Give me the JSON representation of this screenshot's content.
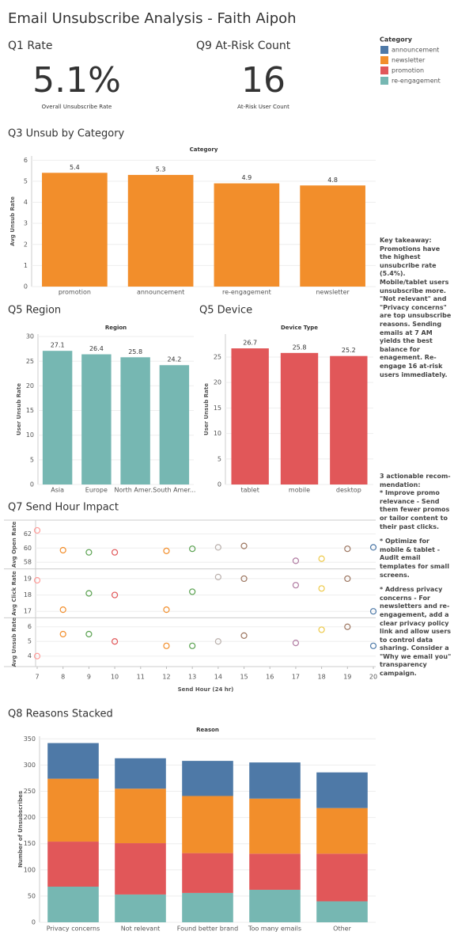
{
  "title": "Email Unsubscribe Analysis - Faith Aipoh",
  "kpis": [
    {
      "heading": "Q1 Rate",
      "value": "5.1%",
      "label": "Overall Unsubscribe Rate"
    },
    {
      "heading": "Q9 At-Risk Count",
      "value": "16",
      "label": "At-Risk User Count"
    }
  ],
  "legend": {
    "title": "Category",
    "items": [
      {
        "name": "announcement",
        "color": "#4e79a7"
      },
      {
        "name": "newsletter",
        "color": "#f28e2b"
      },
      {
        "name": "promotion",
        "color": "#e15759"
      },
      {
        "name": "re-engagement",
        "color": "#76b7b2"
      }
    ]
  },
  "notes": [
    {
      "heading": "Key takeaway:",
      "text": "Promotions have the highest unsubcribe rate (5.4%). Mobile/tablet users unsubscribe more. \"Not relevant\" and \"Privacy concerns\" are top unsubscribe reasons. Sending emails at 7 AM yields the best balance for enagement. Re-engage 16 at-risk users immediately."
    },
    {
      "heading": "3 actionable recom-mendation:",
      "items": [
        "* Improve promo relevance - Send them fewer promos or tailor content to their past clicks.",
        "* Optimize for mobile & tablet - Audit email templates for small screens.",
        "* Address privacy concerns - For newsletters and re-engagement, add a clear privacy policy link and allow users to control data sharing. Consider a \"Why we email you\" transparency campaign."
      ]
    }
  ],
  "chart_data": [
    {
      "type": "bar",
      "title": "Q3 Unsub by Category",
      "header": "Category",
      "ylabel": "Avg Unsub Rate",
      "categories": [
        "promotion",
        "announcement",
        "re-engagement",
        "newsletter"
      ],
      "values": [
        5.4,
        5.3,
        4.9,
        4.8
      ],
      "color": "#f28e2b",
      "ylim": [
        0,
        6.2
      ],
      "yticks": [
        0,
        1,
        2,
        3,
        4,
        5,
        6
      ],
      "grid": true
    },
    {
      "type": "bar",
      "title": "Q5 Region",
      "header": "Region",
      "ylabel": "User Unsub Rate",
      "categories": [
        "Asia",
        "Europe",
        "North Amer...",
        "South Amer..."
      ],
      "values": [
        27.1,
        26.4,
        25.8,
        24.2
      ],
      "color": "#76b7b2",
      "ylim": [
        0,
        30.5
      ],
      "yticks": [
        0,
        5,
        10,
        15,
        20,
        25,
        30
      ],
      "grid": true
    },
    {
      "type": "bar",
      "title": "Q5 Device",
      "header": "Device Type",
      "ylabel": "User Unsub Rate",
      "categories": [
        "tablet",
        "mobile",
        "desktop"
      ],
      "values": [
        26.7,
        25.8,
        25.2
      ],
      "color": "#e15759",
      "ylim": [
        0,
        29.5
      ],
      "yticks": [
        0,
        5,
        10,
        15,
        20,
        25
      ],
      "grid": true
    },
    {
      "type": "scatter",
      "title": "Q7 Send Hour Impact",
      "xlabel": "Send Hour (24 hr)",
      "x": [
        7,
        8,
        9,
        10,
        12,
        13,
        14,
        15,
        17,
        18,
        19,
        20
      ],
      "point_colors": [
        "#ff9d9a",
        "#f28e2b",
        "#59a14f",
        "#e15759",
        "#f28e2b",
        "#59a14f",
        "#bab0ac",
        "#9c755f",
        "#b07aa1",
        "#edc948",
        "#9c755f",
        "#4e79a7"
      ],
      "xlim": [
        7,
        20
      ],
      "xticks": [
        7,
        8,
        9,
        10,
        11,
        12,
        13,
        14,
        15,
        16,
        17,
        18,
        19,
        20
      ],
      "grid": true,
      "series": [
        {
          "name": "Avg Open Rate",
          "values": [
            62.5,
            59.7,
            59.4,
            59.4,
            59.6,
            59.9,
            60.1,
            60.3,
            58.2,
            58.5,
            59.9,
            60.1
          ],
          "ylim": [
            57.5,
            63.5
          ],
          "yticks": [
            58,
            60,
            62
          ]
        },
        {
          "name": "Avg Click Rate",
          "values": [
            18.9,
            17.1,
            18.1,
            18.0,
            17.1,
            18.2,
            19.1,
            19.0,
            18.6,
            18.4,
            19.0,
            17.0
          ],
          "ylim": [
            16.8,
            19.4
          ],
          "yticks": [
            17,
            18,
            19
          ]
        },
        {
          "name": "Avg Unsub Rate",
          "values": [
            4.0,
            5.5,
            5.5,
            5.0,
            4.7,
            4.7,
            5.0,
            5.4,
            4.9,
            5.8,
            6.0,
            4.7
          ],
          "ylim": [
            3.5,
            6.4
          ],
          "yticks": [
            4,
            5,
            6
          ]
        }
      ]
    },
    {
      "type": "stacked_bar",
      "title": "Q8 Reasons Stacked",
      "header": "Reason",
      "ylabel": "Number of Unsubscribes",
      "categories": [
        "Privacy concerns",
        "Not relevant",
        "Found better brand",
        "Too many emails",
        "Other"
      ],
      "series": [
        {
          "name": "re-engagement",
          "color": "#76b7b2",
          "values": [
            68,
            53,
            56,
            62,
            40
          ]
        },
        {
          "name": "promotion",
          "color": "#e15759",
          "values": [
            86,
            98,
            76,
            69,
            91
          ]
        },
        {
          "name": "newsletter",
          "color": "#f28e2b",
          "values": [
            120,
            104,
            109,
            105,
            87
          ]
        },
        {
          "name": "announcement",
          "color": "#4e79a7",
          "values": [
            68,
            58,
            67,
            69,
            68
          ]
        }
      ],
      "ylim": [
        0,
        355
      ],
      "yticks": [
        0,
        50,
        100,
        150,
        200,
        250,
        300,
        350
      ],
      "grid": true
    }
  ]
}
